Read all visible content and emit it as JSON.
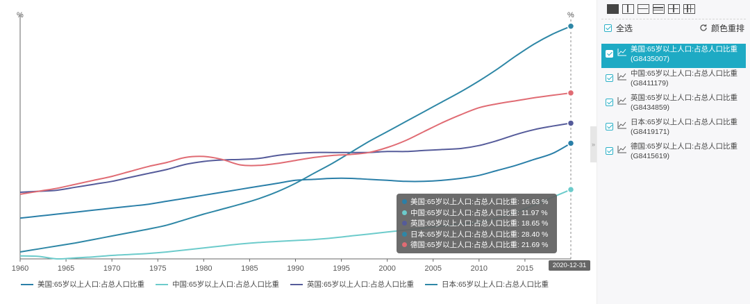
{
  "chart_data": {
    "type": "line",
    "unit_left": "%",
    "unit_right": "%",
    "x": [
      1960,
      1962,
      1964,
      1966,
      1968,
      1970,
      1972,
      1974,
      1976,
      1978,
      1980,
      1982,
      1984,
      1986,
      1988,
      1990,
      1992,
      1994,
      1996,
      1998,
      2000,
      2002,
      2004,
      2006,
      2008,
      2010,
      2012,
      2014,
      2016,
      2018,
      2020
    ],
    "x_ticks": [
      "1960",
      "1965",
      "1970",
      "1975",
      "1980",
      "1985",
      "1990",
      "1995",
      "2000",
      "2005",
      "2010",
      "2015"
    ],
    "xlim": [
      1960,
      2020
    ],
    "ylim": [
      5,
      29.5
    ],
    "grid": false,
    "axis_label_end": "2020-12-31",
    "series": [
      {
        "name": "美国:65岁以上人口:占总人口比重",
        "code": "G8435007",
        "color": "#2a7fa8",
        "values": [
          9.1,
          9.3,
          9.5,
          9.7,
          9.9,
          10.1,
          10.3,
          10.5,
          10.8,
          11.1,
          11.4,
          11.7,
          12.0,
          12.3,
          12.6,
          12.9,
          13.0,
          13.1,
          13.1,
          13.0,
          12.9,
          12.8,
          12.8,
          12.9,
          13.1,
          13.4,
          13.9,
          14.4,
          15.0,
          15.6,
          16.63
        ]
      },
      {
        "name": "中国:65岁以上人口:占总人口比重",
        "code": "G8411179",
        "color": "#6ccbcb",
        "values": [
          5.3,
          5.25,
          5.0,
          5.1,
          5.2,
          5.35,
          5.45,
          5.55,
          5.7,
          5.9,
          6.1,
          6.3,
          6.5,
          6.65,
          6.75,
          6.85,
          6.95,
          7.1,
          7.3,
          7.5,
          7.7,
          7.9,
          8.1,
          8.3,
          8.5,
          8.7,
          9.1,
          9.7,
          10.4,
          11.2,
          11.97
        ]
      },
      {
        "name": "英国:65岁以上人口:占总人口比重",
        "code": "G8434859",
        "color": "#555b9a",
        "values": [
          11.7,
          11.8,
          11.9,
          12.2,
          12.5,
          12.8,
          13.2,
          13.6,
          14.0,
          14.5,
          14.8,
          14.95,
          15.0,
          15.1,
          15.4,
          15.6,
          15.7,
          15.7,
          15.7,
          15.7,
          15.8,
          15.8,
          15.9,
          16.0,
          16.1,
          16.4,
          16.9,
          17.5,
          18.0,
          18.35,
          18.65
        ]
      },
      {
        "name": "日本:65岁以上人口:占总人口比重",
        "code": "G8419171",
        "color": "#2e87a6",
        "values": [
          5.7,
          6.0,
          6.3,
          6.6,
          6.95,
          7.3,
          7.65,
          8.0,
          8.4,
          8.95,
          9.5,
          10.0,
          10.5,
          11.05,
          11.75,
          12.6,
          13.6,
          14.6,
          15.7,
          16.8,
          17.8,
          18.8,
          19.8,
          20.8,
          21.8,
          22.9,
          24.1,
          25.4,
          26.6,
          27.6,
          28.4
        ]
      },
      {
        "name": "德国:65岁以上人口:占总人口比重",
        "code": "G8415619",
        "color": "#e06b73",
        "values": [
          11.5,
          11.8,
          12.1,
          12.5,
          12.9,
          13.3,
          13.8,
          14.3,
          14.7,
          15.2,
          15.3,
          15.0,
          14.45,
          14.4,
          14.6,
          14.9,
          15.2,
          15.4,
          15.5,
          15.7,
          16.2,
          16.9,
          17.8,
          18.7,
          19.5,
          20.2,
          20.6,
          20.9,
          21.2,
          21.45,
          21.69
        ]
      }
    ]
  },
  "tooltip": {
    "rows": [
      {
        "text": "美国:65岁以上人口:占总人口比重: 16.63 %",
        "color": "#2a7fa8"
      },
      {
        "text": "中国:65岁以上人口:占总人口比重: 11.97 %",
        "color": "#6ccbcb"
      },
      {
        "text": "英国:65岁以上人口:占总人口比重: 18.65 %",
        "color": "#555b9a"
      },
      {
        "text": "日本:65岁以上人口:占总人口比重: 28.40 %",
        "color": "#2e87a6"
      },
      {
        "text": "德国:65岁以上人口:占总人口比重: 21.69 %",
        "color": "#e06b73"
      }
    ]
  },
  "legend": {
    "items": [
      {
        "label": "美国:65岁以上人口:占总人口比重",
        "color": "#2a7fa8"
      },
      {
        "label": "中国:65岁以上人口:占总人口比重",
        "color": "#6ccbcb"
      },
      {
        "label": "英国:65岁以上人口:占总人口比重",
        "color": "#555b9a"
      },
      {
        "label": "日本:65岁以上人口:占总人口比重",
        "color": "#2e87a6"
      }
    ]
  },
  "panel": {
    "select_all": "全选",
    "reorder_colors": "颜色重排",
    "collapse_glyph": "»",
    "layout_icons": [
      "single-layout-icon",
      "two-column-layout-icon",
      "two-row-layout-icon",
      "three-row-layout-icon",
      "grid-2x2-layout-icon",
      "grid-3x2-layout-icon"
    ],
    "series": [
      {
        "label": "美国:65岁以上人口:占总人口比重(G8435007)",
        "selected": true
      },
      {
        "label": "中国:65岁以上人口:占总人口比重(G8411179)",
        "selected": false
      },
      {
        "label": "英国:65岁以上人口:占总人口比重(G8434859)",
        "selected": false
      },
      {
        "label": "日本:65岁以上人口:占总人口比重(G8419171)",
        "selected": false
      },
      {
        "label": "德国:65岁以上人口:占总人口比重(G8415619)",
        "selected": false
      }
    ]
  }
}
